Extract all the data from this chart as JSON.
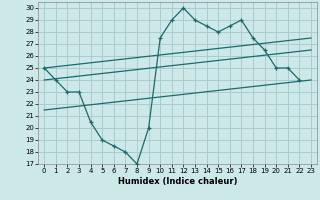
{
  "xlabel": "Humidex (Indice chaleur)",
  "xlim": [
    -0.5,
    23.5
  ],
  "ylim": [
    17,
    30.5
  ],
  "yticks": [
    17,
    18,
    19,
    20,
    21,
    22,
    23,
    24,
    25,
    26,
    27,
    28,
    29,
    30
  ],
  "xticks": [
    0,
    1,
    2,
    3,
    4,
    5,
    6,
    7,
    8,
    9,
    10,
    11,
    12,
    13,
    14,
    15,
    16,
    17,
    18,
    19,
    20,
    21,
    22,
    23
  ],
  "bg_color": "#cce8e8",
  "grid_color": "#aacccc",
  "line_color": "#1a6b6b",
  "main_series": [
    25,
    24,
    23,
    23,
    20.5,
    19,
    18.5,
    18,
    17,
    20,
    27.5,
    29,
    30,
    29,
    28.5,
    28,
    28.5,
    29,
    27.5,
    26.5,
    25,
    25,
    24
  ],
  "trend1_x": [
    0,
    23
  ],
  "trend1_y": [
    25.0,
    27.5
  ],
  "trend2_x": [
    0,
    23
  ],
  "trend2_y": [
    24.0,
    26.5
  ],
  "trend3_x": [
    0,
    23
  ],
  "trend3_y": [
    21.5,
    24.0
  ]
}
